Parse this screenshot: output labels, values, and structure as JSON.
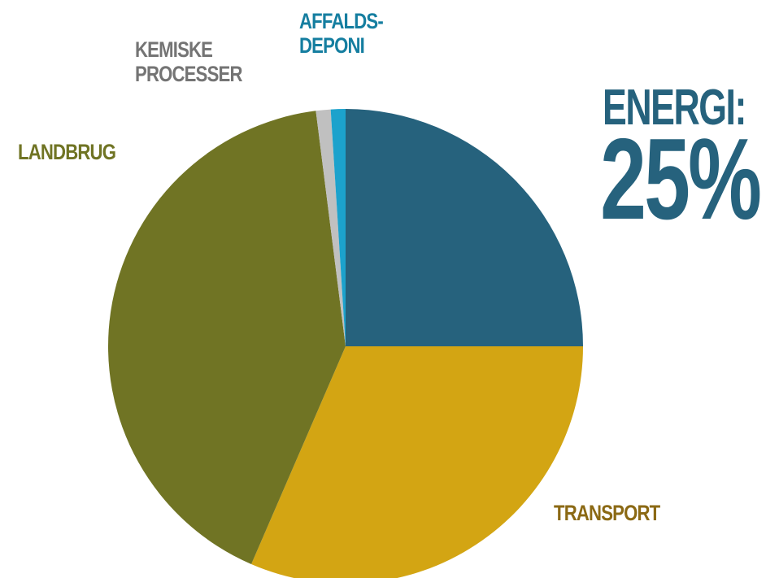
{
  "chart_data": {
    "type": "pie",
    "title": "",
    "slices": [
      {
        "name": "ENERGI",
        "value": 25,
        "color": "#26627d"
      },
      {
        "name": "TRANSPORT",
        "value": 31.5,
        "color": "#d3a513"
      },
      {
        "name": "LANDBRUG",
        "value": 41.5,
        "color": "#707424"
      },
      {
        "name": "KEMISKE PROCESSER",
        "value": 1.0,
        "color": "#c0c0c0"
      },
      {
        "name": "AFFALDSDEPONI",
        "value": 1.0,
        "color": "#1ca2cc"
      }
    ],
    "start_angle_deg": 0,
    "direction": "clockwise"
  },
  "labels": {
    "affalds_line1": "AFFALDS-",
    "affalds_line2": "DEPONI",
    "kemiske_line1": "KEMISKE",
    "kemiske_line2": "PROCESSER",
    "landbrug": "LANDBRUG",
    "transport": "TRANSPORT",
    "energi": "ENERGI:",
    "energi_value": "25%"
  },
  "colors": {
    "energi": "#26627d",
    "transport_label": "#8b6914",
    "landbrug_label": "#707424",
    "kemiske_label": "#747474",
    "affalds_label": "#157ea0"
  }
}
